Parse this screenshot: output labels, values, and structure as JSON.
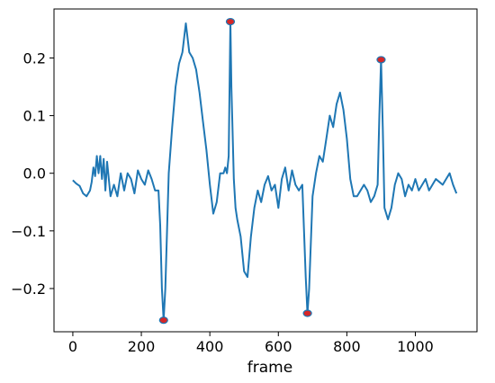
{
  "chart_data": {
    "type": "line",
    "xlabel": "frame",
    "ylabel": "",
    "title": "",
    "xlim": [
      -55,
      1180
    ],
    "ylim": [
      -0.275,
      0.285
    ],
    "xticks": [
      0,
      200,
      400,
      600,
      800,
      1000
    ],
    "xtick_labels": [
      "0",
      "200",
      "400",
      "600",
      "800",
      "1000"
    ],
    "yticks": [
      -0.2,
      -0.1,
      0.0,
      0.1,
      0.2
    ],
    "ytick_labels": [
      "−0.2",
      "−0.1",
      "0.0",
      "0.1",
      "0.2"
    ],
    "grid": false,
    "line_color": "#1f77b4",
    "marker_fill": "#d62728",
    "marker_edge": "#1f77b4",
    "series": [
      {
        "x": [
          0,
          10,
          20,
          30,
          40,
          50,
          55,
          60,
          65,
          70,
          75,
          80,
          85,
          90,
          95,
          100,
          110,
          120,
          130,
          140,
          150,
          160,
          170,
          180,
          190,
          200,
          210,
          220,
          230,
          240,
          250,
          255,
          260,
          265,
          270,
          275,
          280,
          290,
          300,
          310,
          320,
          330,
          340,
          350,
          360,
          370,
          380,
          390,
          400,
          410,
          420,
          430,
          440,
          445,
          450,
          455,
          460,
          463,
          466,
          470,
          475,
          480,
          490,
          500,
          510,
          520,
          530,
          540,
          550,
          560,
          570,
          580,
          590,
          600,
          610,
          620,
          630,
          640,
          650,
          660,
          670,
          675,
          680,
          685,
          690,
          695,
          700,
          710,
          720,
          730,
          740,
          750,
          760,
          770,
          780,
          790,
          800,
          810,
          820,
          830,
          840,
          850,
          860,
          870,
          880,
          890,
          895,
          900,
          905,
          910,
          920,
          930,
          940,
          950,
          960,
          970,
          980,
          990,
          1000,
          1010,
          1020,
          1030,
          1040,
          1050,
          1060,
          1070,
          1080,
          1090,
          1100,
          1110,
          1120
        ],
        "y": [
          -0.012,
          -0.018,
          -0.022,
          -0.035,
          -0.04,
          -0.03,
          -0.015,
          0.01,
          -0.005,
          0.03,
          0.0,
          0.03,
          -0.01,
          0.025,
          -0.03,
          0.02,
          -0.04,
          -0.02,
          -0.04,
          0.0,
          -0.03,
          0.0,
          -0.01,
          -0.035,
          0.005,
          -0.01,
          -0.02,
          0.005,
          -0.01,
          -0.03,
          -0.03,
          -0.09,
          -0.2,
          -0.255,
          -0.2,
          -0.1,
          0.0,
          0.08,
          0.15,
          0.19,
          0.21,
          0.26,
          0.21,
          0.2,
          0.18,
          0.14,
          0.09,
          0.04,
          -0.02,
          -0.07,
          -0.05,
          0.0,
          0.0,
          0.01,
          0.0,
          0.03,
          0.263,
          0.15,
          0.08,
          -0.01,
          -0.06,
          -0.08,
          -0.11,
          -0.17,
          -0.18,
          -0.11,
          -0.06,
          -0.03,
          -0.05,
          -0.02,
          -0.005,
          -0.03,
          -0.02,
          -0.06,
          -0.01,
          0.01,
          -0.03,
          0.005,
          -0.02,
          -0.03,
          -0.02,
          -0.1,
          -0.18,
          -0.243,
          -0.2,
          -0.12,
          -0.04,
          0.0,
          0.03,
          0.02,
          0.06,
          0.1,
          0.08,
          0.12,
          0.14,
          0.11,
          0.06,
          -0.01,
          -0.04,
          -0.04,
          -0.03,
          -0.02,
          -0.03,
          -0.05,
          -0.04,
          -0.02,
          0.1,
          0.197,
          0.08,
          -0.06,
          -0.08,
          -0.06,
          -0.02,
          0.0,
          -0.01,
          -0.04,
          -0.02,
          -0.03,
          -0.01,
          -0.03,
          -0.02,
          -0.01,
          -0.03,
          -0.02,
          -0.01,
          -0.015,
          -0.02,
          -0.01,
          0.0,
          -0.02,
          -0.035
        ]
      }
    ],
    "markers": [
      {
        "x": 265,
        "y": -0.255
      },
      {
        "x": 460,
        "y": 0.263
      },
      {
        "x": 685,
        "y": -0.243
      },
      {
        "x": 900,
        "y": 0.197
      }
    ]
  }
}
